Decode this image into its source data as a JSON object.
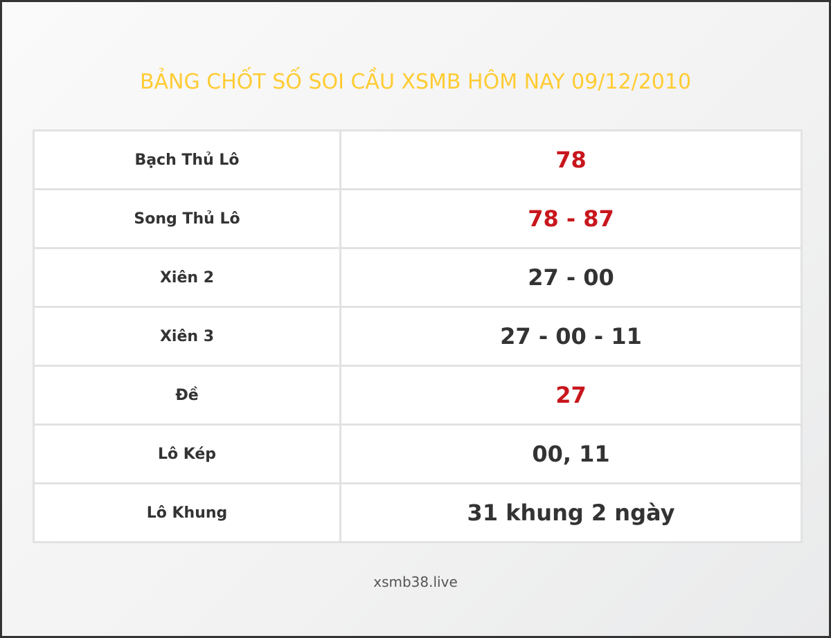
{
  "title": "BẢNG CHỐT SỐ SOI CẦU XSMB HÔM NAY 09/12/2010",
  "colors": {
    "title": "#ffcc33",
    "highlight": "#c8161d",
    "text": "#333333"
  },
  "rows": [
    {
      "label": "Bạch Thủ Lô",
      "value": "78",
      "highlight": true
    },
    {
      "label": "Song Thủ Lô",
      "value": "78 - 87",
      "highlight": true
    },
    {
      "label": "Xiên 2",
      "value": "27 - 00",
      "highlight": false
    },
    {
      "label": "Xiên 3",
      "value": "27 - 00 - 11",
      "highlight": false
    },
    {
      "label": "Đề",
      "value": "27",
      "highlight": true
    },
    {
      "label": "Lô Kép",
      "value": "00, 11",
      "highlight": false
    },
    {
      "label": "Lô Khung",
      "value": "31 khung 2 ngày",
      "highlight": false
    }
  ],
  "footer": "xsmb38.live"
}
